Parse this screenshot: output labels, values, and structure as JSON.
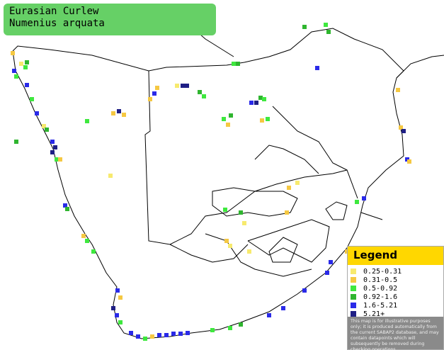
{
  "header": {
    "title": "Eurasian Curlew",
    "subtitle": "Numenius arquata"
  },
  "legend": {
    "title": "Legend",
    "items": [
      {
        "label": "0.25-0.31",
        "color": "#f7ea6e"
      },
      {
        "label": "0.31-0.5",
        "color": "#f5c842"
      },
      {
        "label": "0.5-0.92",
        "color": "#3ee83e"
      },
      {
        "label": "0.92-1.6",
        "color": "#2fb52f"
      },
      {
        "label": "1.6-5.21",
        "color": "#2a2ae8"
      },
      {
        "label": "5.21+",
        "color": "#1f1f85"
      }
    ],
    "note": "This map is for illustrative purposes only; it is produced automatically from the current SABAP2 database, and may contain datapoints which will subsequently be removed during checking operations."
  }
}
